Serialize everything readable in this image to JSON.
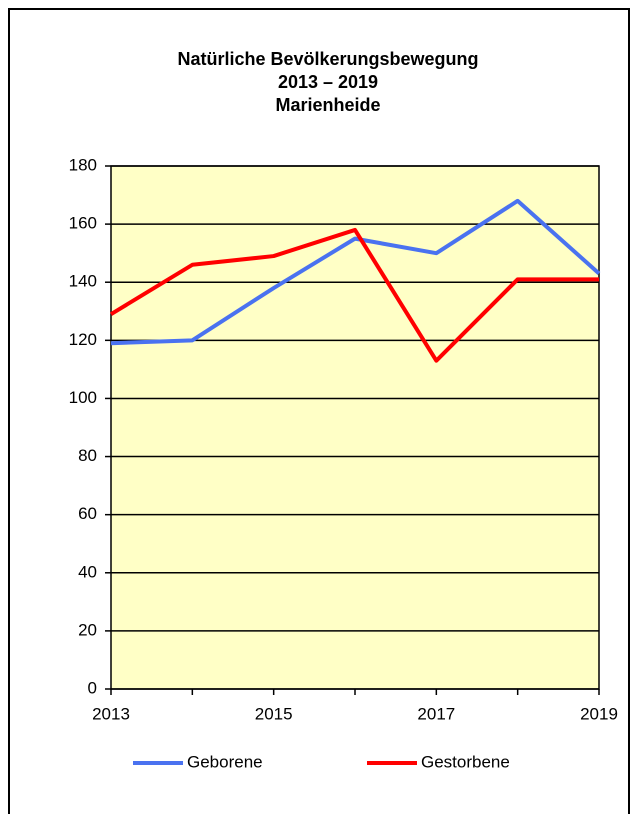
{
  "chart_data": {
    "type": "line",
    "title": [
      "Natürliche Bevölkerungsbewegung",
      "2013 – 2019",
      "Marienheide"
    ],
    "x": [
      2013,
      2014,
      2015,
      2016,
      2017,
      2018,
      2019
    ],
    "series": [
      {
        "name": "Geborene",
        "color": "#4a72f0",
        "values": [
          119,
          120,
          138,
          155,
          150,
          168,
          143
        ]
      },
      {
        "name": "Gestorbene",
        "color": "#ff0000",
        "values": [
          129,
          146,
          149,
          158,
          113,
          141,
          141
        ]
      }
    ],
    "xlim": [
      2013,
      2019
    ],
    "xticks": [
      2013,
      2015,
      2017,
      2019
    ],
    "ylim": [
      0,
      180
    ],
    "yticks": [
      0,
      20,
      40,
      60,
      80,
      100,
      120,
      140,
      160,
      180
    ],
    "grid": true,
    "legend": "bottom",
    "plot_background": "#ffffc6"
  }
}
